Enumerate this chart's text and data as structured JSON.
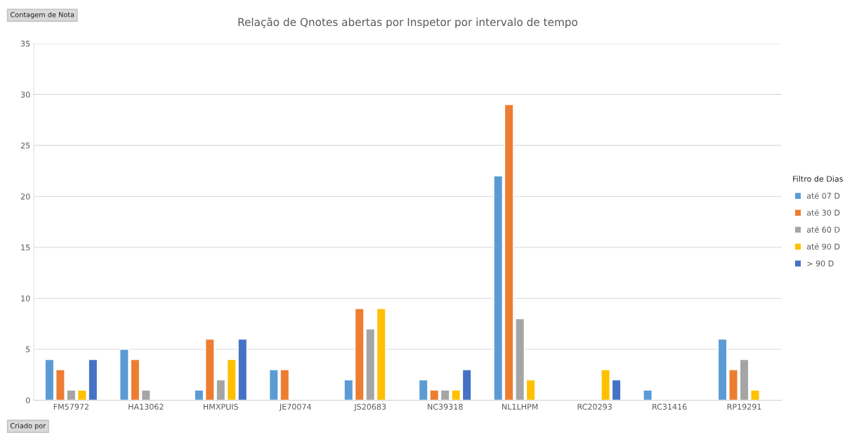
{
  "chart_data": {
    "type": "bar",
    "title": "Relação de Qnotes abertas por Inspetor por intervalo de tempo",
    "categories": [
      "FM57972",
      "HA13062",
      "HMXPUIS",
      "JE70074",
      "JS20683",
      "NC39318",
      "NL1LHPM",
      "RC20293",
      "RC31416",
      "RP19291"
    ],
    "series": [
      {
        "name": "até 07 D",
        "color": "#5b9bd5",
        "values": [
          4,
          5,
          1,
          3,
          2,
          2,
          22,
          null,
          1,
          6
        ]
      },
      {
        "name": "até 30 D",
        "color": "#ed7d31",
        "values": [
          3,
          4,
          6,
          3,
          9,
          1,
          29,
          null,
          null,
          3
        ]
      },
      {
        "name": "até 60 D",
        "color": "#a5a5a5",
        "values": [
          1,
          1,
          2,
          null,
          7,
          1,
          8,
          null,
          null,
          4
        ]
      },
      {
        "name": "até 90 D",
        "color": "#ffc000",
        "values": [
          1,
          null,
          4,
          null,
          9,
          1,
          2,
          3,
          null,
          1
        ]
      },
      {
        "name": "> 90 D",
        "color": "#4472c4",
        "values": [
          4,
          null,
          6,
          null,
          null,
          3,
          null,
          2,
          null,
          null
        ]
      }
    ],
    "legend_title": "Filtro de Dias",
    "legend": "right",
    "ylim": [
      0,
      35
    ],
    "yticks": [
      0,
      5,
      10,
      15,
      20,
      25,
      30,
      35
    ],
    "grid": "y",
    "annotations": [
      "Contagem de Nota",
      "Criado por"
    ]
  }
}
